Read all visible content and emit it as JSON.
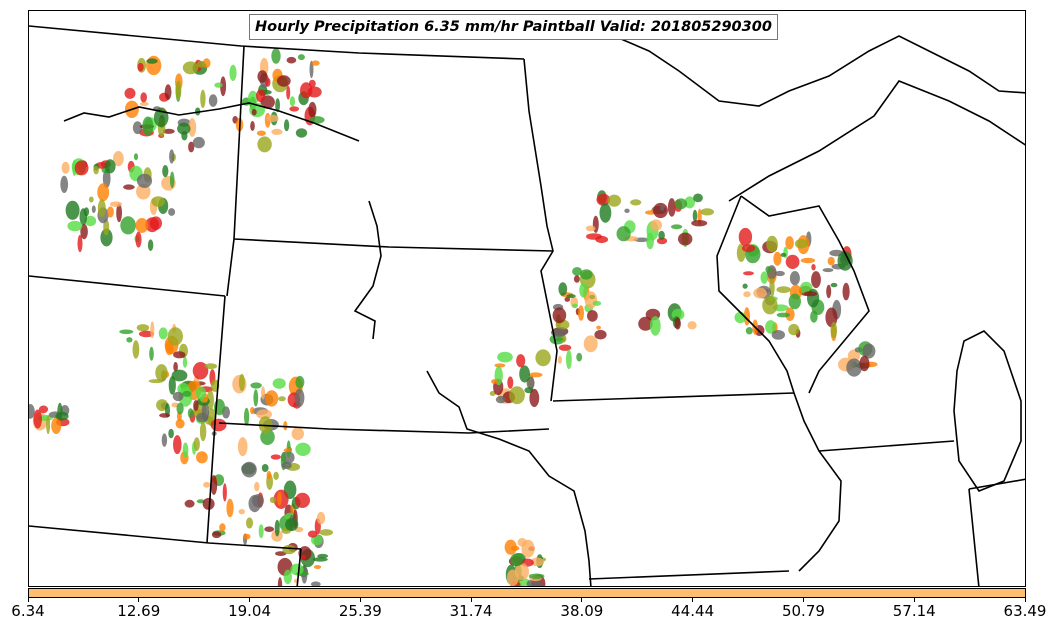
{
  "map": {
    "title": "Hourly Precipitation 6.35 mm/hr Paintball Valid: 201805290300"
  },
  "colorbar": {
    "color": "#fdbf6f",
    "tick_labels": [
      "6.34",
      "12.69",
      "19.04",
      "25.39",
      "31.74",
      "38.09",
      "44.44",
      "50.79",
      "57.14",
      "63.49"
    ]
  },
  "paintball_colors": [
    "#e31a1c",
    "#ff7f00",
    "#33a02c",
    "#1f7a1f",
    "#8b1a1a",
    "#9aa61a",
    "#fdae61",
    "#55dd44",
    "#666666"
  ]
}
